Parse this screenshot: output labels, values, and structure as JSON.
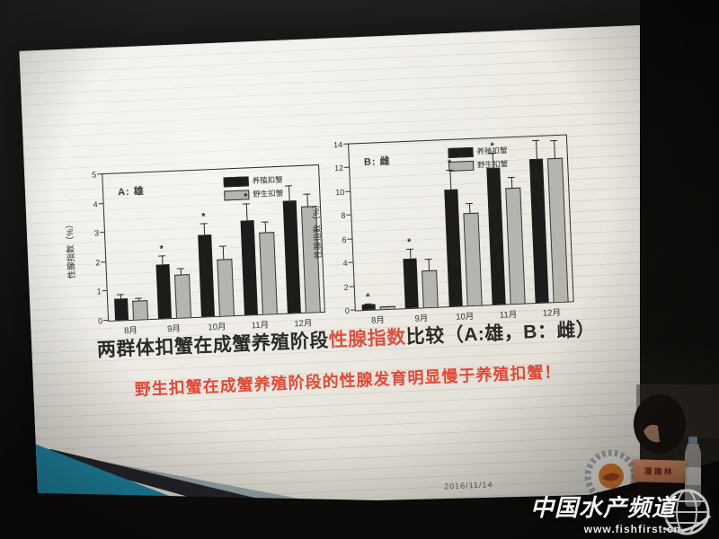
{
  "slide": {
    "title": {
      "pre": "两群体扣蟹在成蟹养殖阶段",
      "highlight": "性腺指数",
      "post": "比较（A:雄，B：雌）"
    },
    "subtitle": "野生扣蟹在成蟹养殖阶段的性腺发育明显慢于养殖扣蟹！",
    "date": "2016/11/14"
  },
  "chart_data": [
    {
      "type": "bar",
      "panel_label": "A: 雄",
      "ylabel": "性腺指数（%）",
      "categories": [
        "8月",
        "9月",
        "10月",
        "11月",
        "12月"
      ],
      "series": [
        {
          "name": "养殖扣蟹",
          "color": "#1c1c1a",
          "values": [
            0.7,
            1.8,
            2.75,
            3.2,
            3.8
          ],
          "errors": [
            0.2,
            0.35,
            0.45,
            0.6,
            0.55
          ],
          "sig": [
            false,
            true,
            true,
            true,
            false
          ]
        },
        {
          "name": "野生扣蟹",
          "color": "#b6b4ae",
          "values": [
            0.6,
            1.45,
            1.9,
            2.75,
            3.6
          ],
          "errors": [
            0.15,
            0.25,
            0.5,
            0.4,
            0.45
          ],
          "sig": [
            false,
            false,
            false,
            false,
            false
          ]
        }
      ],
      "ylim": [
        0,
        5
      ],
      "yticks": [
        0,
        1,
        2,
        3,
        4,
        5
      ],
      "grid": false,
      "legend_position": "upper-center"
    },
    {
      "type": "bar",
      "panel_label": "B: 雌",
      "ylabel": "性腺指数（%）",
      "categories": [
        "8月",
        "9月",
        "10月",
        "11月",
        "12月"
      ],
      "series": [
        {
          "name": "养殖扣蟹",
          "color": "#1c1c1a",
          "values": [
            0.4,
            4.1,
            9.8,
            11.4,
            12.0
          ],
          "errors": [
            0.15,
            0.9,
            1.7,
            1.4,
            1.7
          ],
          "sig": [
            true,
            true,
            true,
            true,
            false
          ]
        },
        {
          "name": "野生扣蟹",
          "color": "#b6b4ae",
          "values": [
            0.15,
            3.0,
            7.7,
            9.7,
            12.0
          ],
          "errors": [
            0.05,
            1.1,
            0.9,
            1.0,
            1.6
          ],
          "sig": [
            false,
            false,
            false,
            false,
            false
          ]
        }
      ],
      "ylim": [
        0,
        14
      ],
      "yticks": [
        0,
        2,
        4,
        6,
        8,
        10,
        12,
        14
      ],
      "grid": false,
      "legend_position": "upper-center"
    }
  ],
  "photo": {
    "watermark": {
      "brand": "中国水产频道",
      "url": "www.fishfirst.cn",
      "icon": "globe-icon"
    },
    "name_card_text": "潘建林"
  },
  "colors": {
    "bar_farmed": "#1c1c1a",
    "bar_wild": "#b6b4ae",
    "title_highlight": "#d85240",
    "subtitle_red": "#e04937",
    "decor_teal": "#1e84a0"
  }
}
